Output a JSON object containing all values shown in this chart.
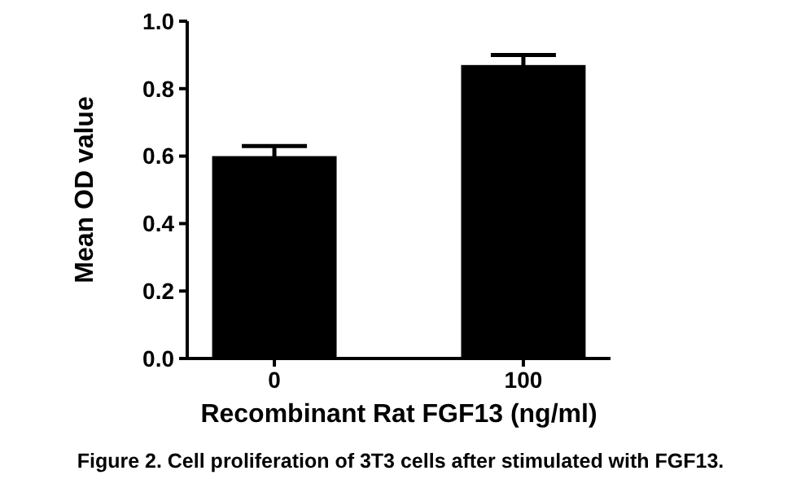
{
  "chart_data": {
    "type": "bar",
    "xlabel": "Recombinant Rat FGF13 (ng/ml)",
    "ylabel": "Mean OD value",
    "categories": [
      "0",
      "100"
    ],
    "values": [
      0.6,
      0.87
    ],
    "errors": [
      0.03,
      0.03
    ],
    "color": "#000000",
    "ylim": [
      0,
      1
    ],
    "yticks": [
      {
        "value": 0,
        "label": "0.0"
      },
      {
        "value": 0.2,
        "label": "0.2"
      },
      {
        "value": 0.4,
        "label": "0.4"
      },
      {
        "value": 0.6,
        "label": "0.6"
      },
      {
        "value": 0.8,
        "label": "0.8"
      },
      {
        "value": 1,
        "label": "1.0"
      }
    ],
    "annotations": [
      "Figure 2. Cell proliferation of 3T3 cells after stimulated with FGF13."
    ]
  }
}
